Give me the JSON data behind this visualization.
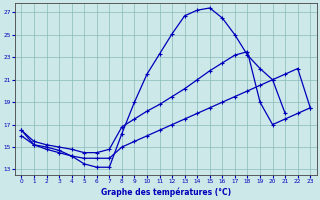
{
  "title": "Graphe des températures (°C)",
  "bg_color": "#cce8e8",
  "line_color": "#0000bb",
  "grid_color": "#88bbbb",
  "xlim": [
    -0.5,
    23.5
  ],
  "ylim": [
    12.5,
    27.8
  ],
  "xticks": [
    0,
    1,
    2,
    3,
    4,
    5,
    6,
    7,
    8,
    9,
    10,
    11,
    12,
    13,
    14,
    15,
    16,
    17,
    18,
    19,
    20,
    21,
    22,
    23
  ],
  "yticks": [
    13,
    15,
    17,
    19,
    21,
    23,
    25,
    27
  ],
  "curve1_x": [
    0,
    1,
    2,
    3,
    4,
    5,
    6,
    7,
    8,
    9,
    10,
    11,
    12,
    13,
    14,
    15,
    16,
    17,
    18,
    19,
    20,
    21
  ],
  "curve1_y": [
    16.5,
    15.2,
    15.0,
    14.7,
    14.2,
    13.5,
    13.2,
    13.2,
    16.2,
    19.0,
    21.5,
    23.3,
    25.1,
    26.7,
    27.2,
    27.4,
    26.5,
    25.0,
    23.2,
    22.0,
    21.0,
    18.0
  ],
  "curve2_x": [
    0,
    1,
    2,
    3,
    4,
    5,
    6,
    7,
    8,
    9,
    10,
    11,
    12,
    13,
    14,
    15,
    16,
    17,
    18,
    19,
    20,
    21,
    22,
    23
  ],
  "curve2_y": [
    16.5,
    15.5,
    15.2,
    15.0,
    14.8,
    14.5,
    14.5,
    14.8,
    16.8,
    17.5,
    18.2,
    18.8,
    19.5,
    20.2,
    21.0,
    21.8,
    22.5,
    23.2,
    23.5,
    19.0,
    17.0,
    17.5,
    18.0,
    18.5
  ],
  "curve3_x": [
    0,
    1,
    2,
    3,
    4,
    5,
    6,
    7,
    8,
    9,
    10,
    11,
    12,
    13,
    14,
    15,
    16,
    17,
    18,
    19,
    20,
    21,
    22,
    23
  ],
  "curve3_y": [
    16.0,
    15.2,
    14.8,
    14.5,
    14.2,
    14.0,
    14.0,
    14.0,
    15.0,
    15.5,
    16.0,
    16.5,
    17.0,
    17.5,
    18.0,
    18.5,
    19.0,
    19.5,
    20.0,
    20.5,
    21.0,
    21.5,
    22.0,
    18.5
  ]
}
